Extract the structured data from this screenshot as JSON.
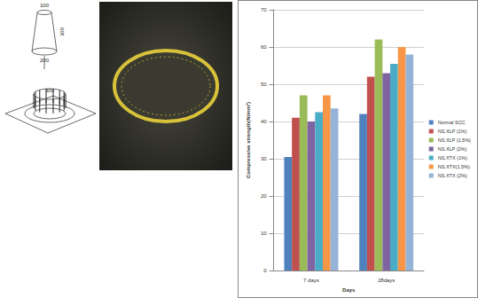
{
  "diagram": {
    "dimensions": [
      "100",
      "300",
      "200",
      "300"
    ]
  },
  "chart_data": {
    "type": "bar",
    "x_label": "Days",
    "y_label": "Compressive strength(N/mm²)",
    "categories": [
      "7 days",
      "28days"
    ],
    "series": [
      {
        "name": "Normal SCC",
        "color": "#4F81BD",
        "values": [
          30.5,
          42
        ]
      },
      {
        "name": "NS.XLP (1%)",
        "color": "#C0504D",
        "values": [
          41,
          52
        ]
      },
      {
        "name": "NS.XLP (1.5%)",
        "color": "#9BBB59",
        "values": [
          47,
          62
        ]
      },
      {
        "name": "NS.XLP (2%)",
        "color": "#8064A2",
        "values": [
          40,
          53
        ]
      },
      {
        "name": "NS.XTX (1%)",
        "color": "#4BACC6",
        "values": [
          42.5,
          55.5
        ]
      },
      {
        "name": "NS.XTX(1.5%)",
        "color": "#F79646",
        "values": [
          47,
          60
        ]
      },
      {
        "name": "NS.XTX (2%)",
        "color": "#95B3D7",
        "values": [
          43.5,
          58
        ]
      }
    ],
    "ylim": [
      0,
      70
    ],
    "yticks": [
      0,
      10,
      20,
      30,
      40,
      50,
      60,
      70
    ],
    "grid": true,
    "legend": "right"
  }
}
